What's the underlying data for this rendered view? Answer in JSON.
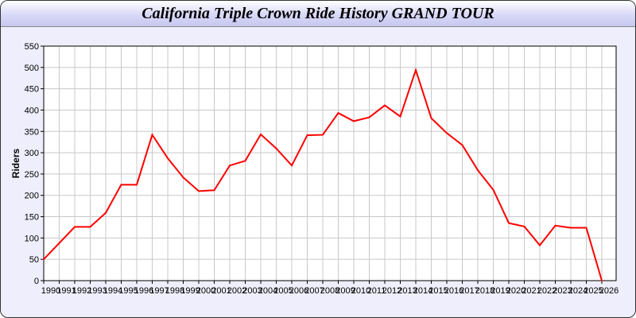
{
  "chart_data": {
    "type": "line",
    "title": "California Triple Crown Ride History GRAND TOUR",
    "xlabel": "",
    "ylabel": "Riders",
    "ylim": [
      0,
      550
    ],
    "yticks": [
      0,
      50,
      100,
      150,
      200,
      250,
      300,
      350,
      400,
      450,
      500,
      550
    ],
    "grid": true,
    "x": [
      1990,
      1991,
      1992,
      1993,
      1994,
      1995,
      1996,
      1997,
      1998,
      1999,
      2000,
      2001,
      2002,
      2003,
      2004,
      2005,
      2006,
      2007,
      2008,
      2009,
      2010,
      2011,
      2012,
      2013,
      2014,
      2015,
      2016,
      2017,
      2018,
      2019,
      2020,
      2021,
      2022,
      2023,
      2024,
      2025,
      2026
    ],
    "series": [
      {
        "values": [
          50,
          88,
          126,
          126,
          159,
          225,
          225,
          342,
          287,
          242,
          210,
          212,
          270,
          281,
          343,
          310,
          270,
          341,
          342,
          393,
          374,
          383,
          411,
          385,
          494,
          381,
          346,
          318,
          259,
          213,
          135,
          127,
          83,
          129,
          124,
          124,
          0
        ],
        "color": "#ff0000"
      }
    ]
  }
}
